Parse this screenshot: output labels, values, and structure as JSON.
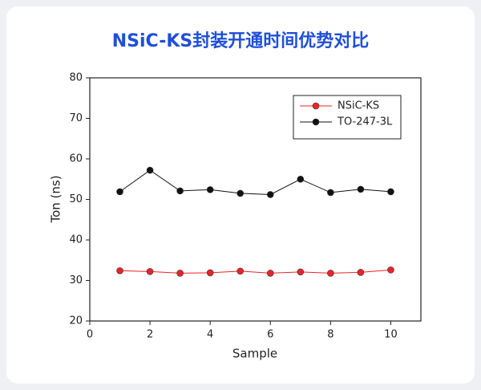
{
  "chart_data": {
    "type": "line",
    "title": "NSiC-KS封装开通时间优势对比",
    "x_label": "Sample",
    "y_label": "Ton (ns)",
    "x": [
      1,
      2,
      3,
      4,
      5,
      6,
      7,
      8,
      9,
      10
    ],
    "series": [
      {
        "name": "NSiC-KS",
        "color": "#e8242a",
        "values": [
          32.4,
          32.2,
          31.8,
          31.9,
          32.3,
          31.8,
          32.1,
          31.8,
          32.0,
          32.6
        ]
      },
      {
        "name": "TO-247-3L",
        "color": "#111111",
        "values": [
          51.9,
          57.2,
          52.1,
          52.4,
          51.5,
          51.2,
          55.0,
          51.7,
          52.5,
          51.9
        ]
      }
    ],
    "xlim": [
      0,
      11
    ],
    "xticks": [
      0,
      2,
      4,
      6,
      8,
      10
    ],
    "ylim": [
      20,
      80
    ],
    "yticks": [
      20,
      30,
      40,
      50,
      60,
      70,
      80
    ],
    "legend": "upper right"
  }
}
